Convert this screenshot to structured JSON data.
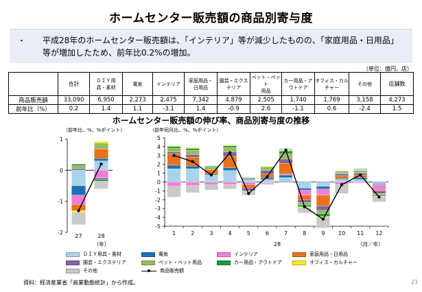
{
  "title": "ホームセンター販売額の商品別寄与度",
  "summary": {
    "bullet": "・",
    "text": "平成28年のホームセンター販売額は、「インテリア」等が減少したものの、「家庭用品・日用品」等が増加したため、前年比0.2%の増加。"
  },
  "unit_note": "（単位：億円、店）",
  "table": {
    "headers": [
      "",
      "合計",
      "ＤＩＹ用\n具・素材",
      "電気",
      "インテリア",
      "家庭用品・\n日用品",
      "園芸・エクス\nテリア",
      "ペット・ペット\n用品",
      "カー用品・ア\nウトドア",
      "オフィス・カル\nチャー",
      "その他",
      "店舗数"
    ],
    "rows": [
      {
        "label": "商品販売額",
        "values": [
          "33,090",
          "6,950",
          "2,273",
          "2,475",
          "7,342",
          "4,879",
          "2,505",
          "1,740",
          "1,769",
          "3,158",
          "4,273"
        ]
      },
      {
        "label": "前年比（%）",
        "values": [
          "0.2",
          "1.4",
          "1.1",
          "-3.1",
          "1.4",
          "-0.9",
          "2.6",
          "-1.1",
          "0.6",
          "-2.4",
          "1.5"
        ]
      }
    ]
  },
  "chart_section_title": "ホームセンター販売額の伸び率、商品別寄与度の推移",
  "left_axis_note": "（前年比、%、%ポイント）",
  "right_axis_note": "（前年同月比、%、%ポイント）",
  "left_x_suffix": "（年）",
  "right_x_suffix": "（月／年）",
  "right_year_label": "28",
  "source": "資料：経済産業省「商業動態統計」から作成。",
  "page_number": "23",
  "colors": {
    "diy": "#a9d3e8",
    "denki": "#1f6fb5",
    "interior": "#f27fd6",
    "katei": "#e9711c",
    "engei": "#8064a2",
    "pet": "#9bbb59",
    "car": "#1a9a4e",
    "office": "#f5e82a",
    "other": "#c9c9c9",
    "total_line": "#000000"
  },
  "legend": [
    {
      "key": "diy",
      "label": "ＤＩＹ用具・素材"
    },
    {
      "key": "denki",
      "label": "電気"
    },
    {
      "key": "interior",
      "label": "インテリア"
    },
    {
      "key": "katei",
      "label": "家庭用品・日用品"
    },
    {
      "key": "engei",
      "label": "園芸・エクステリア"
    },
    {
      "key": "pet",
      "label": "ペット・ペット用品"
    },
    {
      "key": "car",
      "label": "カー用品・アウトドア"
    },
    {
      "key": "office",
      "label": "オフィス・カルチャー"
    },
    {
      "key": "other",
      "label": "その他"
    },
    {
      "key": "total_line",
      "label": "商品販売額",
      "kind": "line"
    }
  ],
  "chart_data": [
    {
      "type": "bar",
      "stacked": true,
      "categories": [
        "27",
        "28"
      ],
      "ylim": [
        -2,
        1
      ],
      "yticks": [
        -2,
        -1,
        0,
        1
      ],
      "series": [
        {
          "key": "diy",
          "values": [
            -0.5,
            0.3
          ]
        },
        {
          "key": "denki",
          "values": [
            -0.3,
            0.08
          ]
        },
        {
          "key": "interior",
          "values": [
            -0.3,
            -0.25
          ]
        },
        {
          "key": "katei",
          "values": [
            -0.2,
            0.3
          ]
        },
        {
          "key": "engei",
          "values": [
            0.05,
            -0.05
          ]
        },
        {
          "key": "pet",
          "values": [
            0.1,
            0.2
          ]
        },
        {
          "key": "car",
          "values": [
            0.05,
            -0.05
          ]
        },
        {
          "key": "office",
          "values": [
            -0.05,
            0.05
          ]
        },
        {
          "key": "other",
          "values": [
            -0.4,
            -0.25
          ]
        }
      ],
      "line": {
        "key": "total_line",
        "values": [
          -1.3,
          0.2
        ]
      }
    },
    {
      "type": "bar",
      "stacked": true,
      "categories": [
        "1",
        "2",
        "3",
        "4",
        "5",
        "6",
        "7",
        "8",
        "9",
        "10",
        "11",
        "12"
      ],
      "ylim": [
        -5,
        5
      ],
      "yticks": [
        -5,
        -4,
        -3,
        -2,
        -1,
        0,
        1,
        2,
        3,
        4,
        5
      ],
      "series": [
        {
          "key": "diy",
          "values": [
            1.5,
            1.5,
            0.8,
            1.3,
            0.3,
            0.3,
            0.5,
            -0.7,
            -0.5,
            0.3,
            0.3,
            -0.2
          ]
        },
        {
          "key": "denki",
          "values": [
            0.4,
            0.3,
            0.1,
            0.3,
            0.1,
            0.2,
            0.3,
            -0.2,
            -0.3,
            0.1,
            0.2,
            -0.1
          ]
        },
        {
          "key": "interior",
          "values": [
            -0.5,
            -0.4,
            -0.2,
            -0.3,
            -0.3,
            -0.1,
            0.1,
            -0.6,
            -0.7,
            -0.3,
            -0.1,
            -0.6
          ]
        },
        {
          "key": "katei",
          "values": [
            1.3,
            1.0,
            0.5,
            1.3,
            -0.4,
            0.4,
            1.2,
            -0.5,
            -1.2,
            0.3,
            0.3,
            -0.1
          ]
        },
        {
          "key": "engei",
          "values": [
            0.2,
            0.3,
            -0.1,
            0.5,
            -0.3,
            0.4,
            0.5,
            -0.3,
            -0.5,
            0.2,
            0.2,
            -0.3
          ]
        },
        {
          "key": "pet",
          "values": [
            0.4,
            0.5,
            0.3,
            0.5,
            0.1,
            0.3,
            0.6,
            -0.3,
            -0.4,
            0.2,
            0.2,
            -0.2
          ]
        },
        {
          "key": "car",
          "values": [
            0.2,
            0.2,
            0.1,
            0.2,
            0.0,
            0.1,
            0.3,
            -0.2,
            -0.3,
            0.1,
            0.1,
            -0.1
          ]
        },
        {
          "key": "office",
          "values": [
            0.1,
            0.1,
            0.05,
            0.1,
            0.0,
            0.1,
            0.1,
            -0.1,
            -0.1,
            0.05,
            0.05,
            -0.05
          ]
        },
        {
          "key": "other",
          "values": [
            -1.2,
            -0.8,
            -0.6,
            -0.5,
            -0.5,
            -0.2,
            0.2,
            -0.6,
            -1.2,
            -1.0,
            0.2,
            -0.6
          ]
        }
      ],
      "line": {
        "key": "total_line",
        "values": [
          3.0,
          2.3,
          0.8,
          3.3,
          -1.3,
          0.6,
          3.6,
          -2.8,
          -4.2,
          -0.3,
          0.8,
          -1.7
        ]
      }
    }
  ]
}
